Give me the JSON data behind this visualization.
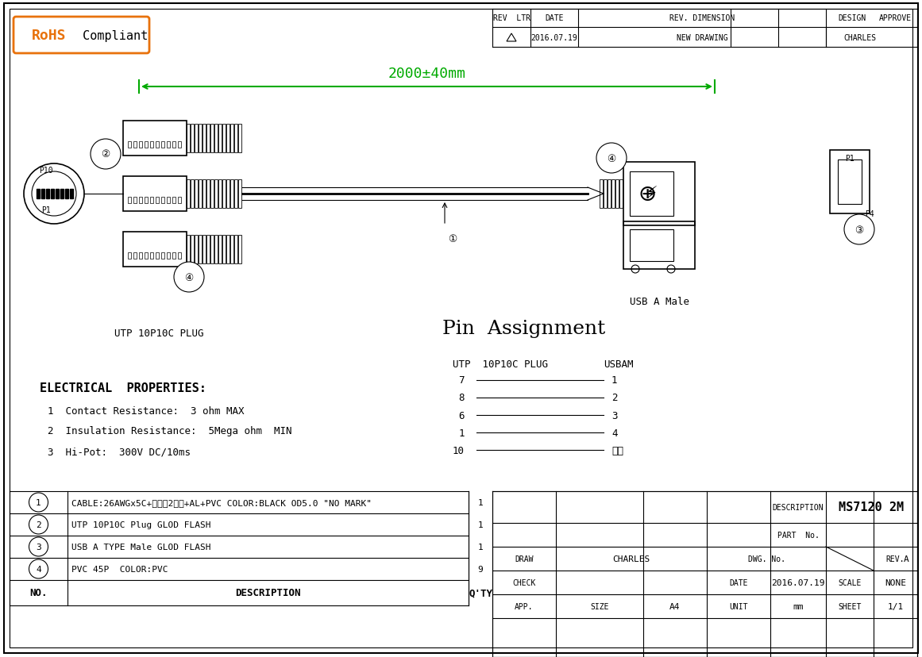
{
  "bg_color": "#ffffff",
  "border_color": "#000000",
  "title_description": "MS7120 2M",
  "rohs_text": "RoHS  Compliant",
  "dimension_text": "2000±40mm",
  "plug_label": "UTP 10P10C PLUG",
  "usb_label": "USB A Male",
  "pin_assignment_title": "Pin  Assignment",
  "pin_utp_header": "UTP  10P10C PLUG",
  "pin_usb_header": "USBAM",
  "pin_rows": [
    [
      "7",
      "1"
    ],
    [
      "8",
      "2"
    ],
    [
      "6",
      "3"
    ],
    [
      "1",
      "4"
    ],
    [
      "10",
      "鐵壳"
    ]
  ],
  "elec_title": "ELECTRICAL  PROPERTIES:",
  "elec_items": [
    "1  Contact Resistance:  3 ohm MAX",
    "2  Insulation Resistance:  5Mega ohm  MIN",
    "3  Hi-Pot:  300V DC/10ms"
  ],
  "bom_rows": [
    [
      "4",
      "PVC 45P  COLOR:PVC",
      "9"
    ],
    [
      "3",
      "USB A TYPE Male GLOD FLASH",
      "1"
    ],
    [
      "2",
      "UTP 10P10C Plug GLOD FLASH",
      "1"
    ],
    [
      "1",
      "CABLE:26AWGx5C+棉线（2支）+AL+PVC COLOR:BLACK OD5.0 \"NO MARK\"",
      "1"
    ]
  ],
  "bom_header": [
    "NO.",
    "DESCRIPTION",
    "Q'TY"
  ],
  "rev_table_headers": [
    "REV  LTR",
    "DATE",
    "REV. DIMENSION",
    "DESIGN",
    "APPROVE"
  ],
  "rev_table_row": [
    "△",
    "2016.07.19",
    "NEW DRAWING",
    "CHARLES",
    ""
  ],
  "title_block": {
    "description_label": "DESCRIPTION",
    "description_value": "MS7120 2M",
    "part_no_label": "PART  No.",
    "draw_label": "DRAW",
    "draw_value": "CHARLES",
    "dwg_no_label": "DWG. No.",
    "rev_label": "REV.",
    "rev_value": "A",
    "check_label": "CHECK",
    "date_label": "DATE",
    "date_value": "2016.07.19",
    "scale_label": "SCALE",
    "scale_value": "NONE",
    "app_label": "APP.",
    "size_label": "SIZE",
    "size_value": "A4",
    "unit_label": "UNIT",
    "unit_value": "mm",
    "sheet_label": "SHEET",
    "sheet_value": "1/1"
  }
}
